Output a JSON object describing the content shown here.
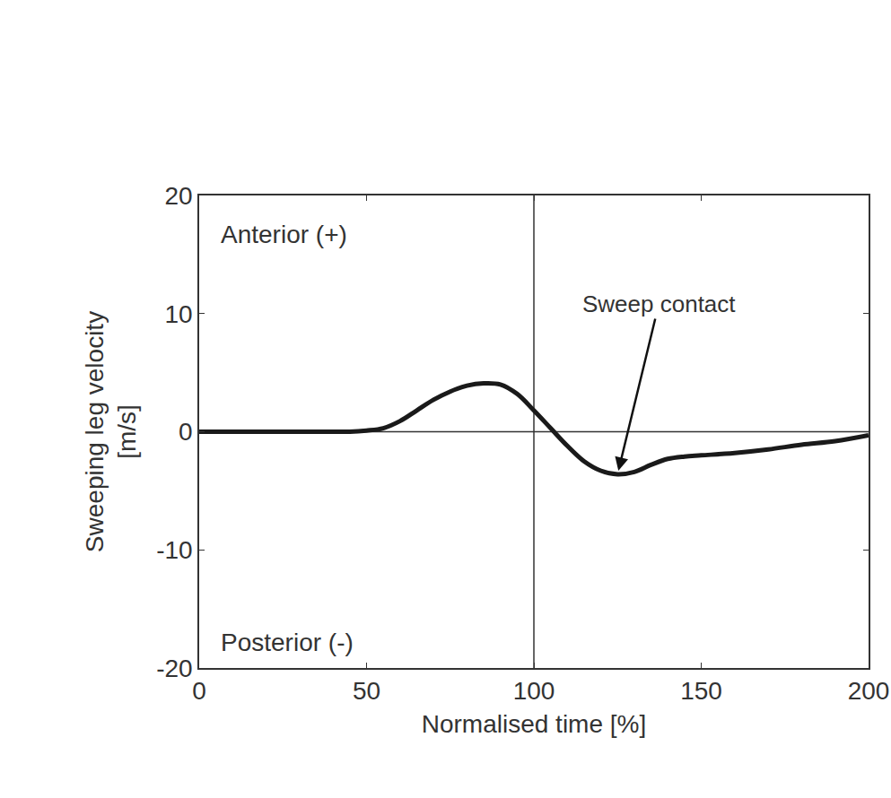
{
  "chart_data": {
    "type": "line",
    "x_label": "Normalised time [%]",
    "y_label": "Sweeping leg velocity\n[m/s]",
    "x": [
      0,
      10,
      20,
      30,
      40,
      45,
      50,
      55,
      60,
      65,
      70,
      75,
      80,
      85,
      90,
      95,
      100,
      105,
      110,
      115,
      120,
      125,
      130,
      135,
      140,
      145,
      150,
      160,
      170,
      180,
      190,
      200
    ],
    "values": [
      0,
      0,
      0,
      0,
      0,
      0,
      0.1,
      0.3,
      0.9,
      1.8,
      2.7,
      3.4,
      3.9,
      4.1,
      4.0,
      3.2,
      1.8,
      0.3,
      -1.2,
      -2.5,
      -3.3,
      -3.6,
      -3.4,
      -2.8,
      -2.3,
      -2.1,
      -2.0,
      -1.8,
      -1.5,
      -1.1,
      -0.8,
      -0.3
    ],
    "color": "#1a1a1a",
    "xlim": [
      0,
      200
    ],
    "ylim": [
      -20,
      20
    ],
    "xticks": [
      0,
      50,
      100,
      150,
      200
    ],
    "yticks": [
      -20,
      -10,
      0,
      10,
      20
    ],
    "vline": 100,
    "hline": 0,
    "annotations": [
      "Anterior (+)",
      "Posterior (-)",
      "Sweep contact"
    ],
    "grid": false
  }
}
